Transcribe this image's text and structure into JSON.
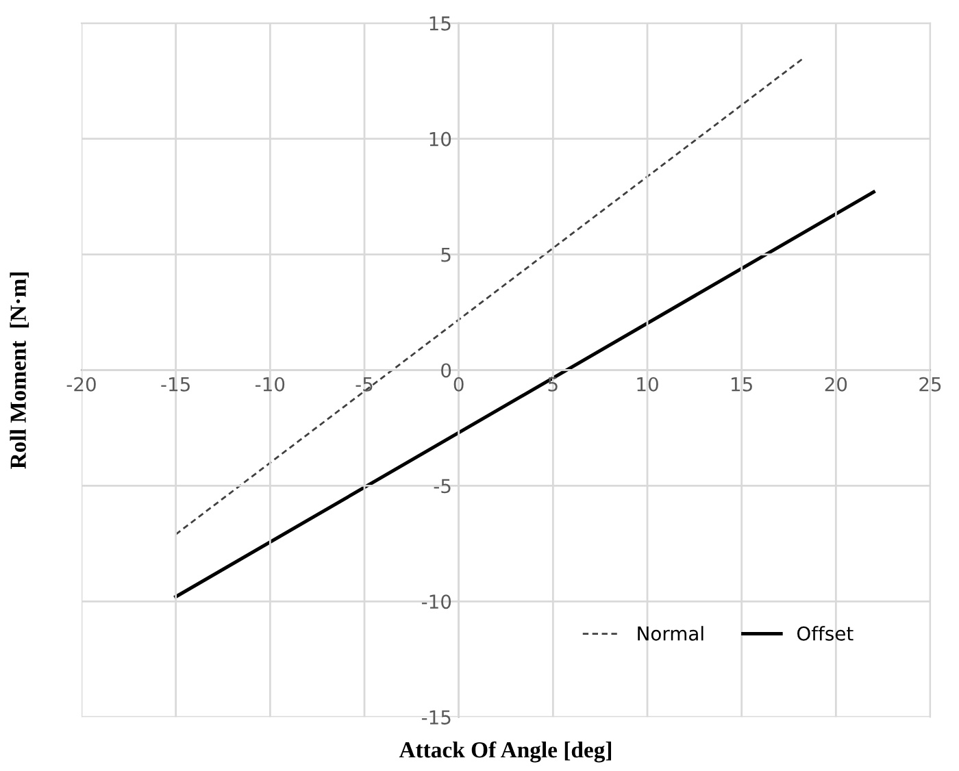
{
  "chart_data": {
    "type": "line",
    "xlabel": "Attack Of Angle [deg]",
    "ylabel": "Roll Moment  [N·m]",
    "xlim": [
      -20,
      25
    ],
    "xticks": [
      -20,
      -15,
      -10,
      -5,
      0,
      5,
      10,
      15,
      20,
      25
    ],
    "ylim": [
      -15,
      15
    ],
    "yticks": [
      -15,
      -10,
      -5,
      0,
      5,
      10,
      15
    ],
    "grid": true,
    "legend": "bottom right",
    "marker": "none",
    "series": [
      {
        "name": "Normal",
        "color": "#404040",
        "line_style": "dotted",
        "x": [
          -15,
          18.3
        ],
        "values": [
          -7.1,
          13.5
        ]
      },
      {
        "name": "Offset",
        "color": "#000000",
        "line_style": "solid",
        "x": [
          -15,
          22
        ],
        "values": [
          -9.8,
          7.7
        ]
      }
    ]
  }
}
